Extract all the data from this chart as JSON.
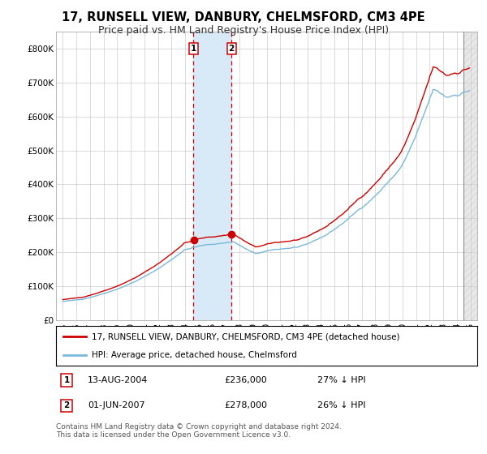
{
  "title": "17, RUNSELL VIEW, DANBURY, CHELMSFORD, CM3 4PE",
  "subtitle": "Price paid vs. HM Land Registry's House Price Index (HPI)",
  "ylim": [
    0,
    850000
  ],
  "yticks": [
    0,
    100000,
    200000,
    300000,
    400000,
    500000,
    600000,
    700000,
    800000
  ],
  "ytick_labels": [
    "£0",
    "£100K",
    "£200K",
    "£300K",
    "£400K",
    "£500K",
    "£600K",
    "£700K",
    "£800K"
  ],
  "sale1_date": 2004.617,
  "sale1_price": 236000,
  "sale2_date": 2007.414,
  "sale2_price": 278000,
  "legend_red": "17, RUNSELL VIEW, DANBURY, CHELMSFORD, CM3 4PE (detached house)",
  "legend_blue": "HPI: Average price, detached house, Chelmsford",
  "table_row1": [
    "1",
    "13-AUG-2004",
    "£236,000",
    "27% ↓ HPI"
  ],
  "table_row2": [
    "2",
    "01-JUN-2007",
    "£278,000",
    "26% ↓ HPI"
  ],
  "footnote": "Contains HM Land Registry data © Crown copyright and database right 2024.\nThis data is licensed under the Open Government Licence v3.0.",
  "hpi_color": "#7ab8d9",
  "price_color": "#cc0000",
  "shade_color": "#d8eaf7",
  "vline_color": "#cc0000",
  "bg_color": "#ffffff",
  "grid_color": "#cccccc",
  "title_fontsize": 10.5,
  "subtitle_fontsize": 9,
  "tick_fontsize": 7.5,
  "legend_fontsize": 7.5,
  "table_fontsize": 8,
  "footnote_fontsize": 6.5
}
